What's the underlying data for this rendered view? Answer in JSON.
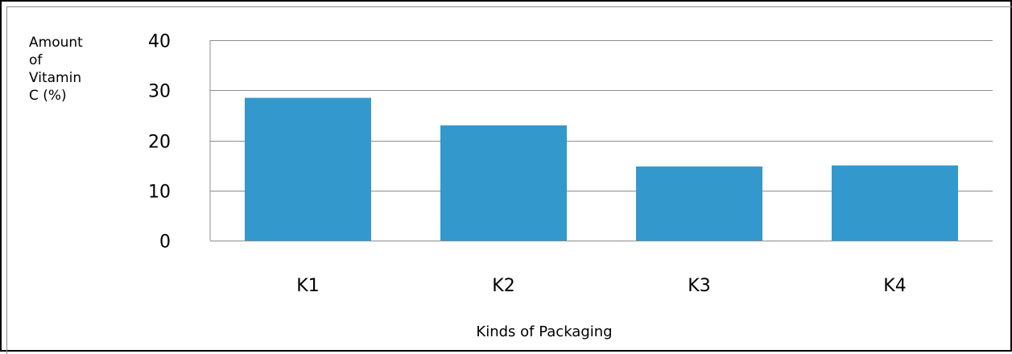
{
  "chart_data": {
    "type": "bar",
    "title": "",
    "ylabel_lines": [
      "Amount",
      "of",
      "Vitamin",
      "C (%)"
    ],
    "xlabel": "Kinds of Packaging",
    "categories": [
      "K1",
      "K2",
      "K3",
      "K4"
    ],
    "values": [
      28.5,
      23,
      14.8,
      15
    ],
    "ylim": [
      0,
      40
    ],
    "yticks": [
      0,
      10,
      20,
      30,
      40
    ],
    "grid": true,
    "bar_color": "#3399cc",
    "grid_color": "#8c8c8c"
  }
}
